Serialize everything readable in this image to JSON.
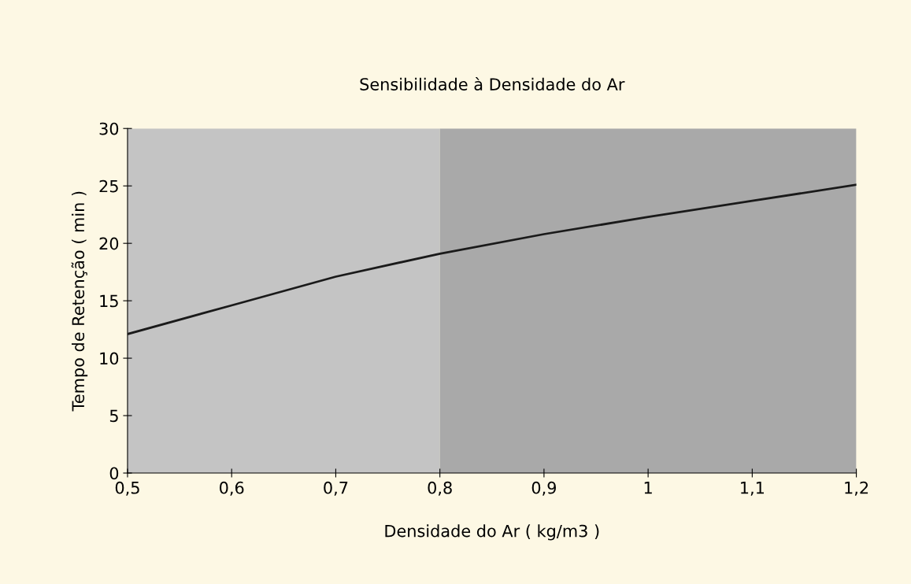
{
  "chart_data": {
    "type": "line",
    "title": "Sensibilidade à Densidade do Ar",
    "xlabel": "Densidade do Ar ( kg/m3 )",
    "ylabel": "Tempo de Retenção ( min )",
    "x": [
      0.5,
      0.6,
      0.7,
      0.8,
      0.9,
      1.0,
      1.1,
      1.2
    ],
    "series": [
      {
        "color": "#1a1a1a",
        "values": [
          12.1,
          14.6,
          17.1,
          19.1,
          20.8,
          22.3,
          23.7,
          25.1
        ]
      }
    ],
    "xlim": [
      0.5,
      1.2
    ],
    "ylim": [
      0,
      30
    ],
    "xticks": [
      {
        "value": 0.5,
        "label": "0,5"
      },
      {
        "value": 0.6,
        "label": "0,6"
      },
      {
        "value": 0.7,
        "label": "0,7"
      },
      {
        "value": 0.8,
        "label": "0,8"
      },
      {
        "value": 0.9,
        "label": "0,9"
      },
      {
        "value": 1,
        "label": "1"
      },
      {
        "value": 1.1,
        "label": "1,1"
      },
      {
        "value": 1.2,
        "label": "1,2"
      }
    ],
    "yticks": [
      0,
      5,
      10,
      15,
      20,
      25,
      30
    ],
    "bands": [
      {
        "axis": "x",
        "from": 0.5,
        "to": 0.8,
        "color": "#c4c4c4"
      },
      {
        "axis": "x",
        "from": 0.8,
        "to": 1.2,
        "color": "#a9a9a9"
      }
    ],
    "grid": false,
    "marker": "none",
    "line_style": "solid"
  }
}
